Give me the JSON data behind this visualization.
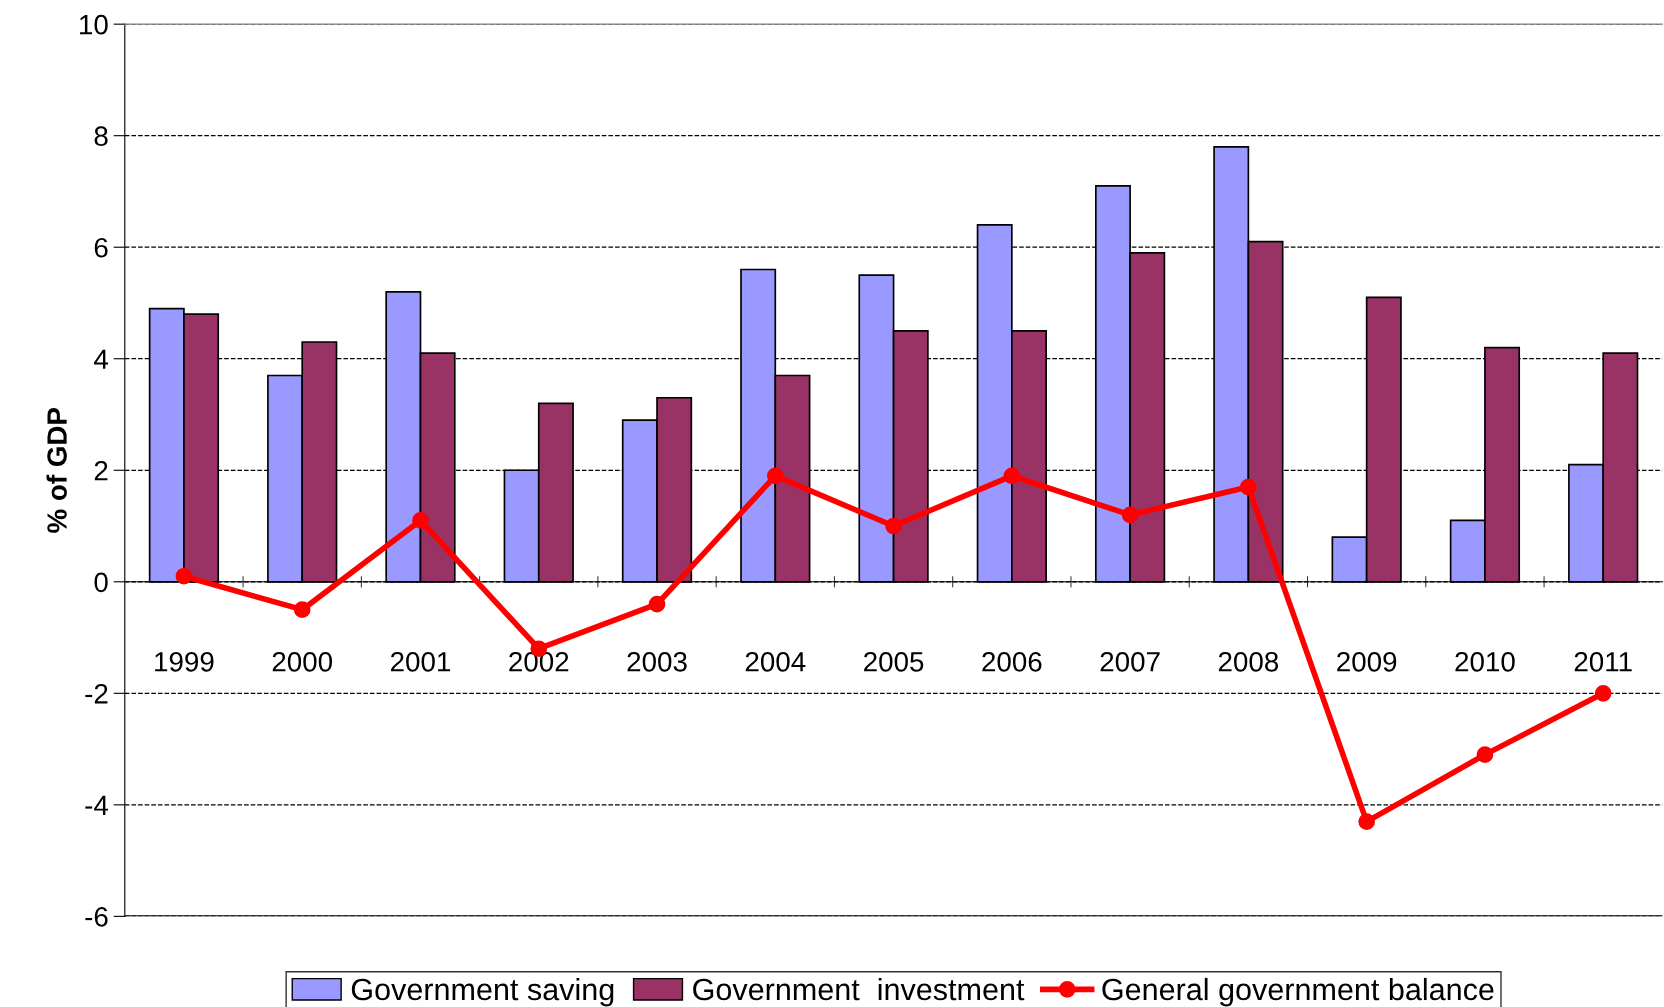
{
  "chart_data": {
    "type": "bar",
    "ylabel": "% of GDP",
    "categories": [
      "1999",
      "2000",
      "2001",
      "2002",
      "2003",
      "2004",
      "2005",
      "2006",
      "2007",
      "2008",
      "2009",
      "2010",
      "2011"
    ],
    "series": [
      {
        "name": "Government saving",
        "color": "#9999ff",
        "values": [
          4.9,
          3.7,
          5.2,
          2.0,
          2.9,
          5.6,
          5.5,
          6.4,
          7.1,
          7.8,
          0.8,
          1.1,
          2.1
        ]
      },
      {
        "name": "Government  investment",
        "color": "#993366",
        "values": [
          4.8,
          4.3,
          4.1,
          3.2,
          3.3,
          3.7,
          4.5,
          4.5,
          5.9,
          6.1,
          5.1,
          4.2,
          4.1
        ]
      },
      {
        "name": "General government balance",
        "type": "line",
        "color": "#ff0000",
        "marker": "circle",
        "values": [
          0.1,
          -0.5,
          1.1,
          -1.2,
          -0.4,
          1.9,
          1.0,
          1.9,
          1.2,
          1.7,
          -4.3,
          -3.1,
          -2.0
        ]
      }
    ],
    "ylim": [
      -6,
      10
    ],
    "yticks": [
      -6,
      -4,
      -2,
      0,
      2,
      4,
      6,
      8,
      10
    ],
    "grid": "y",
    "legend": "bottom"
  }
}
